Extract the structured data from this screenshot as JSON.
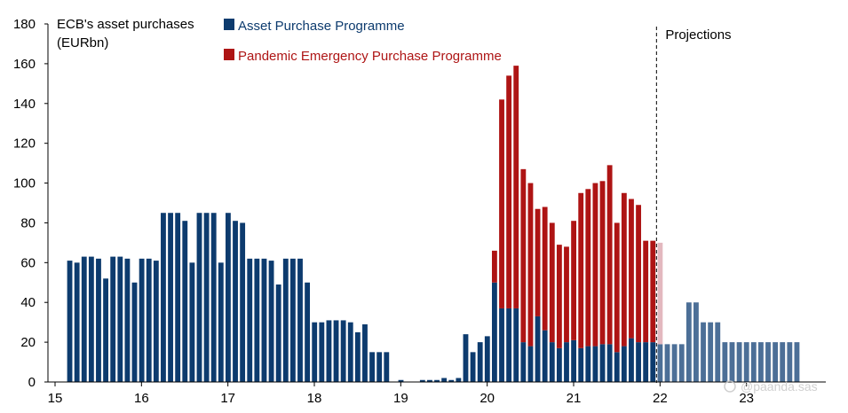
{
  "chart_data": {
    "type": "bar",
    "stacked": true,
    "title_lines": [
      "ECB's asset purchases",
      "(EURbn)"
    ],
    "ylim": [
      0,
      180
    ],
    "yticks": [
      0,
      20,
      40,
      60,
      80,
      100,
      120,
      140,
      160,
      180
    ],
    "xlim": [
      2015,
      2024
    ],
    "xticks": [
      {
        "value": 2015,
        "label": "15"
      },
      {
        "value": 2016,
        "label": "16"
      },
      {
        "value": 2017,
        "label": "17"
      },
      {
        "value": 2018,
        "label": "18"
      },
      {
        "value": 2019,
        "label": "19"
      },
      {
        "value": 2020,
        "label": "20"
      },
      {
        "value": 2021,
        "label": "21"
      },
      {
        "value": 2022,
        "label": "22"
      },
      {
        "value": 2023,
        "label": "23"
      }
    ],
    "start": 2015.17,
    "month_step": 0.0833,
    "projection_start_index": 82,
    "projection_label": "Projections",
    "watermark": "@paanda.sas",
    "series": [
      {
        "name": "Asset Purchase Programme",
        "color": "#0d3b6e",
        "projection_color": "#4c6f97",
        "values": [
          61,
          60,
          63,
          63,
          62,
          52,
          63,
          63,
          62,
          50,
          62,
          62,
          61,
          85,
          85,
          85,
          81,
          60,
          85,
          85,
          85,
          60,
          85,
          81,
          80,
          62,
          62,
          62,
          61,
          49,
          62,
          62,
          62,
          50,
          30,
          30,
          31,
          31,
          31,
          30,
          25,
          29,
          15,
          15,
          15,
          0,
          1,
          0,
          0,
          1,
          1,
          1,
          2,
          1,
          2,
          24,
          15,
          20,
          23,
          50,
          37,
          37,
          37,
          20,
          18,
          33,
          26,
          20,
          17,
          20,
          21,
          17,
          18,
          18,
          19,
          19,
          15,
          18,
          22,
          20,
          20,
          20,
          19,
          19,
          19,
          19,
          40,
          40,
          30,
          30,
          30,
          20,
          20,
          20,
          20,
          20,
          20,
          20,
          20,
          20,
          20,
          20
        ]
      },
      {
        "name": "Pandemic Emergency Purchase Programme",
        "color": "#ae1414",
        "projection_color": "#e3b8bf",
        "values": [
          0,
          0,
          0,
          0,
          0,
          0,
          0,
          0,
          0,
          0,
          0,
          0,
          0,
          0,
          0,
          0,
          0,
          0,
          0,
          0,
          0,
          0,
          0,
          0,
          0,
          0,
          0,
          0,
          0,
          0,
          0,
          0,
          0,
          0,
          0,
          0,
          0,
          0,
          0,
          0,
          0,
          0,
          0,
          0,
          0,
          0,
          0,
          0,
          0,
          0,
          0,
          0,
          0,
          0,
          0,
          0,
          0,
          0,
          0,
          16,
          105,
          117,
          122,
          87,
          82,
          54,
          62,
          60,
          52,
          48,
          60,
          78,
          79,
          82,
          82,
          90,
          65,
          77,
          70,
          69,
          51,
          51,
          51,
          0,
          0,
          0,
          0,
          0,
          0,
          0,
          0,
          0,
          0,
          0,
          0,
          0,
          0,
          0,
          0,
          0,
          0,
          0
        ]
      }
    ]
  }
}
